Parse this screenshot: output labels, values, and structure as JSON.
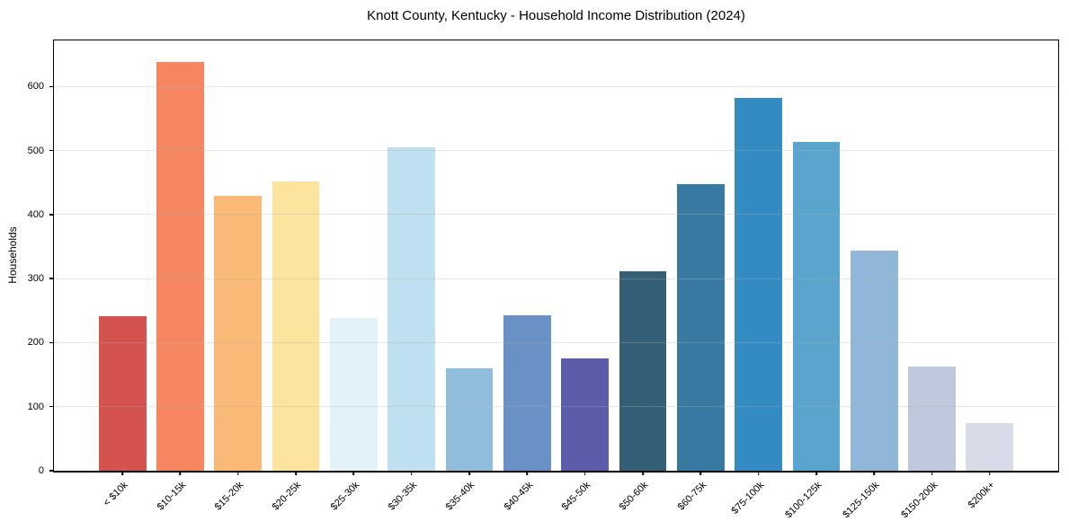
{
  "chart_data": {
    "type": "bar",
    "title": "Knott County, Kentucky - Household Income Distribution (2024)",
    "xlabel": "",
    "ylabel": "Households",
    "categories": [
      "< $10k",
      "$10-15k",
      "$15-20k",
      "$20-25k",
      "$25-30k",
      "$30-35k",
      "$35-40k",
      "$40-45k",
      "$45-50k",
      "$50-60k",
      "$60-75k",
      "$75-100k",
      "$100-125k",
      "$125-150k",
      "$150-200k",
      "$200k+"
    ],
    "values": [
      242,
      639,
      429,
      452,
      238,
      505,
      160,
      243,
      175,
      312,
      447,
      582,
      514,
      344,
      163,
      75
    ],
    "bar_colors": [
      "#d4534e",
      "#f4875f",
      "#fbb977",
      "#fde49e",
      "#e3f1f8",
      "#bfe0ee",
      "#90bddc",
      "#6a91c5",
      "#5b5dab",
      "#335f76",
      "#3879a2",
      "#338bc1",
      "#5aa5cd",
      "#90b6d9",
      "#bec9de",
      "#d9dae7"
    ],
    "y_ticks": [
      0,
      100,
      200,
      300,
      400,
      500,
      600
    ],
    "ylim": [
      0,
      672
    ],
    "grid": "horizontal",
    "legend": "none",
    "background": "#ffffff"
  }
}
